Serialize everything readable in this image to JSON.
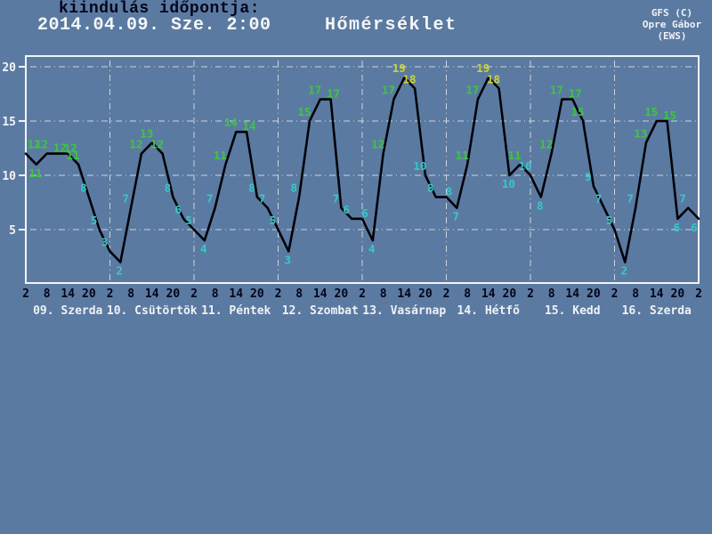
{
  "header": {
    "run_label": "kiindulás időpontja:",
    "run_time": "2014.04.09. Sze. 2:00",
    "title": "Hőmérséklet",
    "credit1": "GFS (C)",
    "credit2": "Opre Gábor",
    "credit3": "(EWS)"
  },
  "colors": {
    "background": "#5b7aa1",
    "frame": "#f2f4f6",
    "grid": "#cfd4d9",
    "curve": "#020208",
    "label_cyan": "#38c8c4",
    "label_green": "#3cc644",
    "label_yellow": "#ccd437",
    "hour_text": "#05051a",
    "day_text": "#eef2f6",
    "ytick_text": "#f2f4f6"
  },
  "chart_data": {
    "type": "line",
    "title": "Hőmérséklet",
    "start_label": "2014.04.09. Sze. 2:00",
    "step_hours": 3,
    "ylim": [
      0,
      21
    ],
    "yticks": [
      5,
      10,
      15,
      20
    ],
    "grid": true,
    "hour_ticks": [
      "2",
      "8",
      "14",
      "20"
    ],
    "final_hour_tick": "2",
    "days": [
      {
        "name": "09. Szerda",
        "values": [
          12,
          11,
          12,
          12,
          12,
          11,
          8,
          5
        ]
      },
      {
        "name": "10. Csütörtök",
        "values": [
          3,
          2,
          7,
          12,
          13,
          12,
          8,
          6
        ]
      },
      {
        "name": "11. Péntek",
        "values": [
          5,
          4,
          7,
          11,
          14,
          14,
          8,
          7
        ]
      },
      {
        "name": "12. Szombat",
        "values": [
          5,
          3,
          8,
          15,
          17,
          17,
          7,
          6
        ]
      },
      {
        "name": "13. Vasárnap",
        "values": [
          6,
          4,
          12,
          17,
          19,
          18,
          10,
          8
        ]
      },
      {
        "name": "14. Hétfő",
        "values": [
          8,
          7,
          11,
          17,
          19,
          18,
          10,
          11
        ]
      },
      {
        "name": "15. Kedd",
        "values": [
          10,
          8,
          12,
          17,
          17,
          15,
          9,
          7
        ]
      },
      {
        "name": "16. Szerda",
        "values": [
          5,
          2,
          7,
          13,
          15,
          15,
          6,
          7
        ]
      }
    ],
    "final_value": 6,
    "label_color_rule": {
      "cyan_max": 10,
      "green_max": 17,
      "yellow_min": 18
    }
  }
}
